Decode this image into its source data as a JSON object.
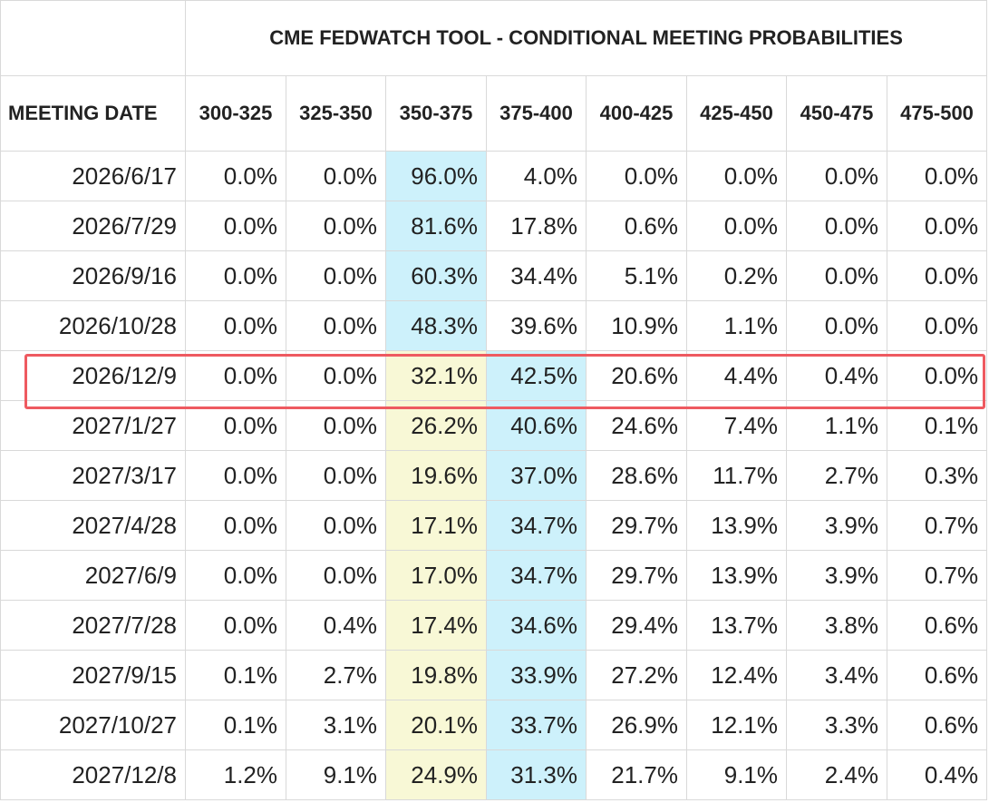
{
  "title": "CME FEDWATCH TOOL - CONDITIONAL MEETING PROBABILITIES",
  "date_header": "MEETING DATE",
  "ranges": [
    "300-325",
    "325-350",
    "350-375",
    "375-400",
    "400-425",
    "425-450",
    "450-475",
    "475-500"
  ],
  "highlighted_row": "2026/12/9",
  "colors": {
    "max_cell": "#cdf1fb",
    "second_cell": "#f8f8d6",
    "highlight_border": "#ee5a60"
  },
  "rows": [
    {
      "date": "2026/6/17",
      "values": [
        "0.0%",
        "0.0%",
        "96.0%",
        "4.0%",
        "0.0%",
        "0.0%",
        "0.0%",
        "0.0%"
      ],
      "max": 2,
      "second": -1
    },
    {
      "date": "2026/7/29",
      "values": [
        "0.0%",
        "0.0%",
        "81.6%",
        "17.8%",
        "0.6%",
        "0.0%",
        "0.0%",
        "0.0%"
      ],
      "max": 2,
      "second": -1
    },
    {
      "date": "2026/9/16",
      "values": [
        "0.0%",
        "0.0%",
        "60.3%",
        "34.4%",
        "5.1%",
        "0.2%",
        "0.0%",
        "0.0%"
      ],
      "max": 2,
      "second": -1
    },
    {
      "date": "2026/10/28",
      "values": [
        "0.0%",
        "0.0%",
        "48.3%",
        "39.6%",
        "10.9%",
        "1.1%",
        "0.0%",
        "0.0%"
      ],
      "max": 2,
      "second": -1
    },
    {
      "date": "2026/12/9",
      "values": [
        "0.0%",
        "0.0%",
        "32.1%",
        "42.5%",
        "20.6%",
        "4.4%",
        "0.4%",
        "0.0%"
      ],
      "max": 3,
      "second": 2
    },
    {
      "date": "2027/1/27",
      "values": [
        "0.0%",
        "0.0%",
        "26.2%",
        "40.6%",
        "24.6%",
        "7.4%",
        "1.1%",
        "0.1%"
      ],
      "max": 3,
      "second": 2
    },
    {
      "date": "2027/3/17",
      "values": [
        "0.0%",
        "0.0%",
        "19.6%",
        "37.0%",
        "28.6%",
        "11.7%",
        "2.7%",
        "0.3%"
      ],
      "max": 3,
      "second": 2
    },
    {
      "date": "2027/4/28",
      "values": [
        "0.0%",
        "0.0%",
        "17.1%",
        "34.7%",
        "29.7%",
        "13.9%",
        "3.9%",
        "0.7%"
      ],
      "max": 3,
      "second": 2
    },
    {
      "date": "2027/6/9",
      "values": [
        "0.0%",
        "0.0%",
        "17.0%",
        "34.7%",
        "29.7%",
        "13.9%",
        "3.9%",
        "0.7%"
      ],
      "max": 3,
      "second": 2
    },
    {
      "date": "2027/7/28",
      "values": [
        "0.0%",
        "0.4%",
        "17.4%",
        "34.6%",
        "29.4%",
        "13.7%",
        "3.8%",
        "0.6%"
      ],
      "max": 3,
      "second": 2
    },
    {
      "date": "2027/9/15",
      "values": [
        "0.1%",
        "2.7%",
        "19.8%",
        "33.9%",
        "27.2%",
        "12.4%",
        "3.4%",
        "0.6%"
      ],
      "max": 3,
      "second": 2
    },
    {
      "date": "2027/10/27",
      "values": [
        "0.1%",
        "3.1%",
        "20.1%",
        "33.7%",
        "26.9%",
        "12.1%",
        "3.3%",
        "0.6%"
      ],
      "max": 3,
      "second": 2
    },
    {
      "date": "2027/12/8",
      "values": [
        "1.2%",
        "9.1%",
        "24.9%",
        "31.3%",
        "21.7%",
        "9.1%",
        "2.4%",
        "0.4%"
      ],
      "max": 3,
      "second": 2
    }
  ]
}
